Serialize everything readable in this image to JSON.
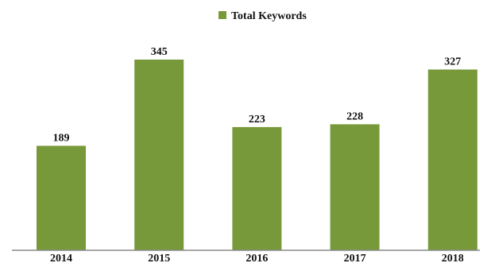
{
  "chart_data": {
    "type": "bar",
    "categories": [
      "2014",
      "2015",
      "2016",
      "2017",
      "2018"
    ],
    "series": [
      {
        "name": "Total Keywords",
        "values": [
          189,
          345,
          223,
          228,
          327
        ],
        "color": "#77993a"
      }
    ],
    "data_labels": [
      "189",
      "345",
      "223",
      "228",
      "327"
    ],
    "ylim": [
      0,
      400
    ],
    "grid": false,
    "legend_position": "top-center",
    "axis_color": "#8a8a8a"
  }
}
